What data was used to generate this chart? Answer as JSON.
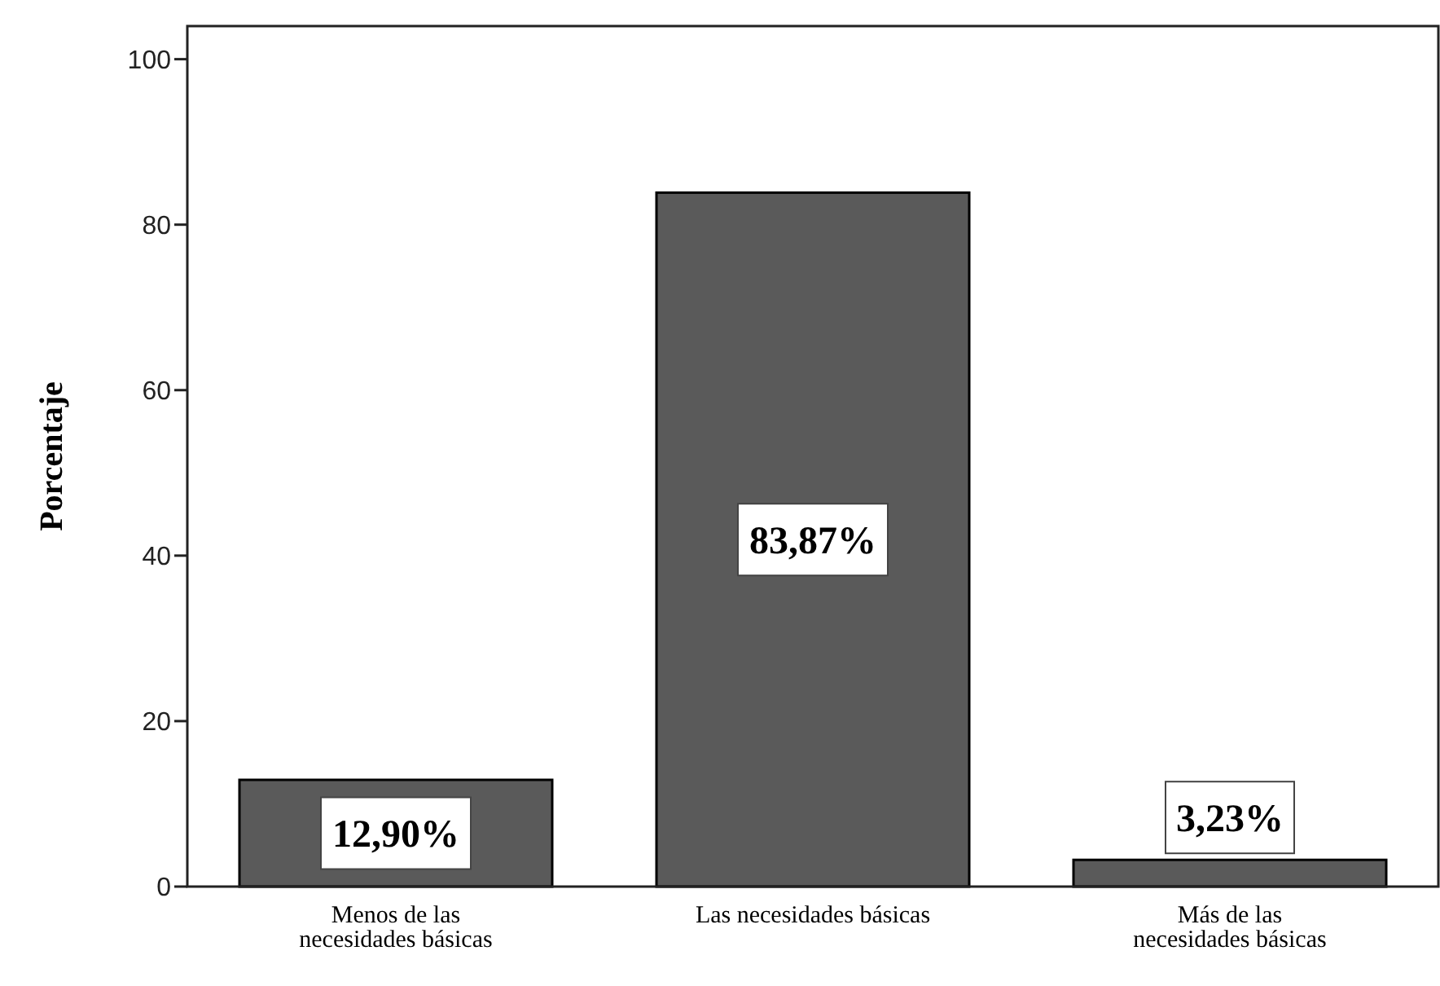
{
  "chart_data": {
    "type": "bar",
    "ylabel": "Porcentaje",
    "categories": [
      "Menos de las necesidades básicas",
      "Las necesidades básicas",
      "Más de las necesidades básicas"
    ],
    "values": [
      12.9,
      83.87,
      3.23
    ],
    "value_labels": [
      "12,90%",
      "83,87%",
      "3,23%"
    ],
    "color": "#5a5a5a",
    "ylim": [
      0,
      104
    ],
    "yticks": [
      0,
      20,
      40,
      60,
      80,
      100
    ],
    "grid": false
  }
}
